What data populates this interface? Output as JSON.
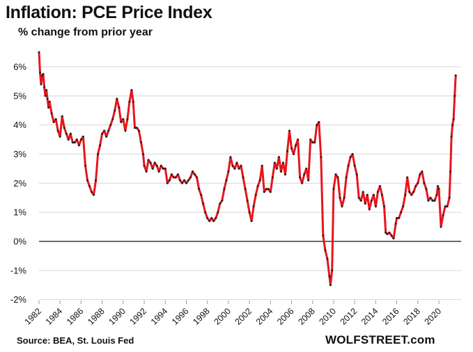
{
  "chart_data": {
    "type": "line",
    "title": "Inflation: PCE Price Index",
    "subtitle": "% change from prior year",
    "source": "Source: BEA, St. Louis Fed",
    "brand": "WOLFSTREET.com",
    "ylim": [
      -2,
      6.8
    ],
    "yticks": [
      6,
      5,
      4,
      3,
      2,
      1,
      0,
      -1,
      -2
    ],
    "ytick_labels": [
      "6%",
      "5%",
      "4%",
      "3%",
      "2%",
      "1%",
      "0%",
      "-1%",
      "-2%"
    ],
    "xlim": [
      1982,
      2021.6
    ],
    "xticks": [
      1982,
      1984,
      1986,
      1988,
      1990,
      1992,
      1994,
      1996,
      1998,
      2000,
      2002,
      2004,
      2006,
      2008,
      2010,
      2012,
      2014,
      2016,
      2018,
      2020
    ],
    "xtick_labels": [
      "1982",
      "1984",
      "1986",
      "1988",
      "1990",
      "1992",
      "1994",
      "1996",
      "1998",
      "2000",
      "2002",
      "2004",
      "2006",
      "2008",
      "2010",
      "2012",
      "2014",
      "2016",
      "2018",
      "2020"
    ],
    "grid": true,
    "line_color": "#e8141c",
    "marker_color": "#222222",
    "series": [
      {
        "points": [
          [
            1982.0,
            6.5
          ],
          [
            1982.1,
            5.8
          ],
          [
            1982.2,
            5.4
          ],
          [
            1982.3,
            5.7
          ],
          [
            1982.4,
            5.75
          ],
          [
            1982.5,
            5.3
          ],
          [
            1982.6,
            5.0
          ],
          [
            1982.7,
            5.2
          ],
          [
            1982.8,
            4.9
          ],
          [
            1982.9,
            4.6
          ],
          [
            1983.0,
            4.8
          ],
          [
            1983.2,
            4.4
          ],
          [
            1983.4,
            4.1
          ],
          [
            1983.6,
            4.2
          ],
          [
            1983.8,
            3.8
          ],
          [
            1984.0,
            3.6
          ],
          [
            1984.2,
            4.3
          ],
          [
            1984.4,
            3.9
          ],
          [
            1984.6,
            3.7
          ],
          [
            1984.8,
            3.5
          ],
          [
            1985.0,
            3.7
          ],
          [
            1985.2,
            3.4
          ],
          [
            1985.4,
            3.4
          ],
          [
            1985.6,
            3.5
          ],
          [
            1985.8,
            3.3
          ],
          [
            1986.0,
            3.5
          ],
          [
            1986.2,
            3.6
          ],
          [
            1986.4,
            2.6
          ],
          [
            1986.6,
            2.1
          ],
          [
            1986.8,
            1.9
          ],
          [
            1987.0,
            1.7
          ],
          [
            1987.2,
            1.6
          ],
          [
            1987.4,
            2.1
          ],
          [
            1987.6,
            3.0
          ],
          [
            1987.8,
            3.3
          ],
          [
            1988.0,
            3.7
          ],
          [
            1988.2,
            3.8
          ],
          [
            1988.4,
            3.6
          ],
          [
            1988.6,
            3.8
          ],
          [
            1988.8,
            4.0
          ],
          [
            1989.0,
            4.2
          ],
          [
            1989.2,
            4.5
          ],
          [
            1989.4,
            4.9
          ],
          [
            1989.6,
            4.6
          ],
          [
            1989.8,
            4.1
          ],
          [
            1990.0,
            4.2
          ],
          [
            1990.2,
            3.8
          ],
          [
            1990.4,
            4.2
          ],
          [
            1990.6,
            4.8
          ],
          [
            1990.8,
            5.2
          ],
          [
            1990.95,
            4.8
          ],
          [
            1991.1,
            3.9
          ],
          [
            1991.3,
            3.9
          ],
          [
            1991.5,
            3.8
          ],
          [
            1991.7,
            3.4
          ],
          [
            1991.9,
            3.0
          ],
          [
            1992.0,
            2.6
          ],
          [
            1992.2,
            2.4
          ],
          [
            1992.4,
            2.8
          ],
          [
            1992.6,
            2.7
          ],
          [
            1992.8,
            2.5
          ],
          [
            1993.0,
            2.7
          ],
          [
            1993.2,
            2.6
          ],
          [
            1993.4,
            2.4
          ],
          [
            1993.6,
            2.6
          ],
          [
            1993.8,
            2.5
          ],
          [
            1994.0,
            2.5
          ],
          [
            1994.2,
            2.0
          ],
          [
            1994.4,
            2.1
          ],
          [
            1994.6,
            2.3
          ],
          [
            1994.8,
            2.2
          ],
          [
            1995.0,
            2.2
          ],
          [
            1995.2,
            2.3
          ],
          [
            1995.4,
            2.1
          ],
          [
            1995.6,
            2.0
          ],
          [
            1995.8,
            2.1
          ],
          [
            1996.0,
            2.0
          ],
          [
            1996.2,
            2.1
          ],
          [
            1996.4,
            2.2
          ],
          [
            1996.6,
            2.4
          ],
          [
            1996.8,
            2.3
          ],
          [
            1997.0,
            2.2
          ],
          [
            1997.2,
            1.8
          ],
          [
            1997.4,
            1.6
          ],
          [
            1997.6,
            1.3
          ],
          [
            1997.8,
            1.0
          ],
          [
            1998.0,
            0.8
          ],
          [
            1998.2,
            0.7
          ],
          [
            1998.4,
            0.8
          ],
          [
            1998.6,
            0.7
          ],
          [
            1998.8,
            0.8
          ],
          [
            1999.0,
            1.0
          ],
          [
            1999.2,
            1.3
          ],
          [
            1999.4,
            1.4
          ],
          [
            1999.6,
            1.8
          ],
          [
            1999.8,
            2.1
          ],
          [
            2000.0,
            2.4
          ],
          [
            2000.2,
            2.9
          ],
          [
            2000.4,
            2.6
          ],
          [
            2000.6,
            2.5
          ],
          [
            2000.8,
            2.7
          ],
          [
            2001.0,
            2.5
          ],
          [
            2001.2,
            2.6
          ],
          [
            2001.4,
            2.2
          ],
          [
            2001.6,
            1.8
          ],
          [
            2001.8,
            1.4
          ],
          [
            2002.0,
            1.0
          ],
          [
            2002.2,
            0.7
          ],
          [
            2002.4,
            1.2
          ],
          [
            2002.6,
            1.6
          ],
          [
            2002.8,
            1.9
          ],
          [
            2003.0,
            2.1
          ],
          [
            2003.2,
            2.6
          ],
          [
            2003.4,
            1.7
          ],
          [
            2003.6,
            1.8
          ],
          [
            2003.8,
            1.8
          ],
          [
            2004.0,
            1.7
          ],
          [
            2004.2,
            2.2
          ],
          [
            2004.4,
            2.7
          ],
          [
            2004.6,
            2.5
          ],
          [
            2004.8,
            2.9
          ],
          [
            2005.0,
            2.4
          ],
          [
            2005.2,
            2.7
          ],
          [
            2005.4,
            2.3
          ],
          [
            2005.6,
            3.1
          ],
          [
            2005.8,
            3.8
          ],
          [
            2006.0,
            3.2
          ],
          [
            2006.2,
            3.0
          ],
          [
            2006.4,
            3.3
          ],
          [
            2006.6,
            3.5
          ],
          [
            2006.8,
            2.2
          ],
          [
            2007.0,
            2.0
          ],
          [
            2007.2,
            2.3
          ],
          [
            2007.4,
            2.5
          ],
          [
            2007.6,
            2.1
          ],
          [
            2007.8,
            3.5
          ],
          [
            2008.0,
            3.4
          ],
          [
            2008.2,
            3.4
          ],
          [
            2008.4,
            4.0
          ],
          [
            2008.6,
            4.1
          ],
          [
            2008.8,
            2.9
          ],
          [
            2009.0,
            0.2
          ],
          [
            2009.2,
            -0.3
          ],
          [
            2009.4,
            -0.6
          ],
          [
            2009.6,
            -1.2
          ],
          [
            2009.7,
            -1.5
          ],
          [
            2009.85,
            -1.0
          ],
          [
            2010.0,
            1.8
          ],
          [
            2010.2,
            2.3
          ],
          [
            2010.4,
            2.2
          ],
          [
            2010.6,
            1.5
          ],
          [
            2010.8,
            1.2
          ],
          [
            2011.0,
            1.5
          ],
          [
            2011.2,
            2.2
          ],
          [
            2011.4,
            2.6
          ],
          [
            2011.6,
            2.9
          ],
          [
            2011.8,
            3.0
          ],
          [
            2012.0,
            2.6
          ],
          [
            2012.2,
            2.3
          ],
          [
            2012.4,
            1.5
          ],
          [
            2012.6,
            1.4
          ],
          [
            2012.8,
            1.7
          ],
          [
            2013.0,
            1.3
          ],
          [
            2013.2,
            1.6
          ],
          [
            2013.4,
            1.1
          ],
          [
            2013.6,
            1.4
          ],
          [
            2013.8,
            1.6
          ],
          [
            2014.0,
            1.2
          ],
          [
            2014.2,
            1.7
          ],
          [
            2014.4,
            1.9
          ],
          [
            2014.6,
            1.6
          ],
          [
            2014.8,
            1.2
          ],
          [
            2014.95,
            0.3
          ],
          [
            2015.1,
            0.25
          ],
          [
            2015.3,
            0.3
          ],
          [
            2015.5,
            0.2
          ],
          [
            2015.7,
            0.1
          ],
          [
            2015.9,
            0.6
          ],
          [
            2016.0,
            0.8
          ],
          [
            2016.2,
            0.8
          ],
          [
            2016.4,
            1.0
          ],
          [
            2016.6,
            1.2
          ],
          [
            2016.8,
            1.6
          ],
          [
            2017.0,
            2.2
          ],
          [
            2017.2,
            1.7
          ],
          [
            2017.4,
            1.6
          ],
          [
            2017.6,
            1.7
          ],
          [
            2017.8,
            1.9
          ],
          [
            2018.0,
            2.0
          ],
          [
            2018.2,
            2.3
          ],
          [
            2018.4,
            2.4
          ],
          [
            2018.6,
            2.0
          ],
          [
            2018.8,
            1.8
          ],
          [
            2019.0,
            1.4
          ],
          [
            2019.2,
            1.5
          ],
          [
            2019.4,
            1.4
          ],
          [
            2019.6,
            1.4
          ],
          [
            2019.8,
            1.6
          ],
          [
            2019.9,
            1.9
          ],
          [
            2020.0,
            1.8
          ],
          [
            2020.2,
            0.5
          ],
          [
            2020.4,
            0.9
          ],
          [
            2020.6,
            1.2
          ],
          [
            2020.8,
            1.2
          ],
          [
            2021.0,
            1.5
          ],
          [
            2021.1,
            2.4
          ],
          [
            2021.2,
            3.6
          ],
          [
            2021.3,
            4.0
          ],
          [
            2021.4,
            4.2
          ],
          [
            2021.5,
            5.0
          ],
          [
            2021.6,
            5.7
          ]
        ]
      }
    ]
  }
}
